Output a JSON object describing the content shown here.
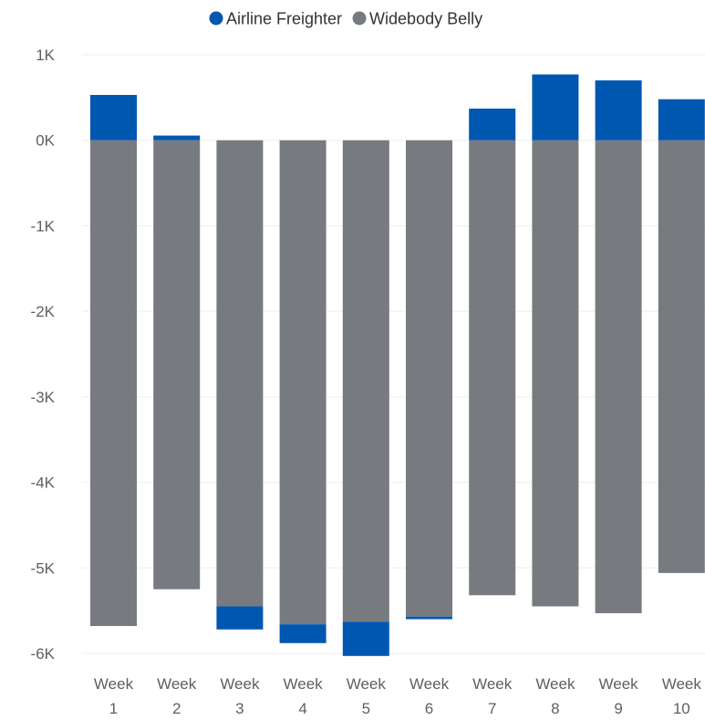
{
  "chart_data": {
    "type": "bar",
    "stacked": true,
    "categories": [
      "Week 1",
      "Week 2",
      "Week 3",
      "Week 4",
      "Week 5",
      "Week 6",
      "Week 7",
      "Week 8",
      "Week 9",
      "Week 10"
    ],
    "series": [
      {
        "name": "Airline Freighter",
        "color": "#0057B0",
        "values": [
          530,
          55,
          -270,
          -220,
          -400,
          -30,
          370,
          770,
          700,
          480
        ]
      },
      {
        "name": "Widebody Belly",
        "color": "#777B80",
        "values": [
          -5680,
          -5250,
          -5450,
          -5660,
          -5630,
          -5570,
          -5320,
          -5450,
          -5530,
          -5060
        ]
      }
    ],
    "ylim": [
      -6000,
      1000
    ],
    "yticks": [
      {
        "value": 1000,
        "label": "1K"
      },
      {
        "value": 0,
        "label": "0K"
      },
      {
        "value": -1000,
        "label": "-1K"
      },
      {
        "value": -2000,
        "label": "-2K"
      },
      {
        "value": -3000,
        "label": "-3K"
      },
      {
        "value": -4000,
        "label": "-4K"
      },
      {
        "value": -5000,
        "label": "-5K"
      },
      {
        "value": -6000,
        "label": "-6K"
      }
    ],
    "legend_position": "top-center",
    "grid": true,
    "title": "",
    "xlabel": "",
    "ylabel": ""
  }
}
